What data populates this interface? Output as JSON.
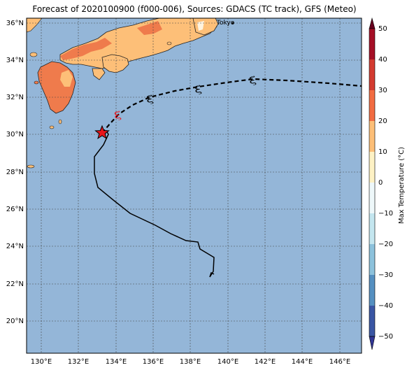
{
  "title": "Forecast of 2020100900 (f000-006), Sources: GDACS (TC track), GFS (Meteo)",
  "city_label": "Tokyo",
  "map": {
    "lon_ticks": [
      "130°E",
      "132°E",
      "134°E",
      "136°E",
      "138°E",
      "140°E",
      "142°E",
      "144°E",
      "146°E"
    ],
    "lat_ticks": [
      "20°N",
      "22°N",
      "24°N",
      "26°N",
      "28°N",
      "30°N",
      "32°N",
      "34°N",
      "36°N"
    ],
    "ocean_color": "#94b6d8"
  },
  "colorbar": {
    "label": "Max Temperature (°C)",
    "ticks": [
      "50",
      "40",
      "30",
      "20",
      "10",
      "0",
      "−10",
      "−20",
      "−30",
      "−40",
      "−50"
    ],
    "colors": [
      "#67001f",
      "#b2182b",
      "#d6604d",
      "#f4a582",
      "#fddbc7",
      "#f7f7f7",
      "#d1e5f0",
      "#92c5de",
      "#4393c3",
      "#2166ac",
      "#053061"
    ]
  },
  "track": {
    "past_color": "#000000",
    "forecast_color": "#000000",
    "current_marker_color": "#e8141a",
    "cyclone_symbol": "૬"
  }
}
